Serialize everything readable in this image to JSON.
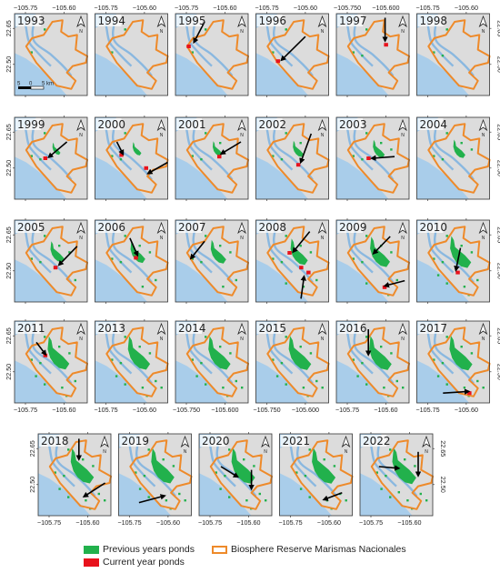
{
  "colors": {
    "sea": "#a9cdea",
    "land": "#dcdcdc",
    "lagoon_line": "#8ab8e0",
    "reserve": "#ee8a2a",
    "previous": "#22b14c",
    "current": "#e8121c",
    "frame": "#333333"
  },
  "maps": [
    {
      "year": "1993",
      "cluster": 0.0,
      "current": [],
      "arrows": []
    },
    {
      "year": "1994",
      "cluster": 0.0,
      "current": [],
      "arrows": []
    },
    {
      "year": "1995",
      "cluster": 0.02,
      "current": [
        [
          0.18,
          0.4
        ]
      ],
      "arrows": [
        [
          0.4,
          0.1,
          0.26,
          0.34
        ]
      ]
    },
    {
      "year": "1996",
      "cluster": 0.04,
      "current": [
        [
          0.3,
          0.58
        ]
      ],
      "arrows": [
        [
          0.68,
          0.28,
          0.36,
          0.56
        ]
      ]
    },
    {
      "year": "1997",
      "cluster": 0.05,
      "current": [
        [
          0.68,
          0.38
        ]
      ],
      "arrows": [
        [
          0.67,
          0.05,
          0.67,
          0.32
        ]
      ]
    },
    {
      "year": "1998",
      "cluster": 0.06,
      "current": [],
      "arrows": []
    },
    {
      "year": "1999",
      "cluster": 0.1,
      "current": [
        [
          0.42,
          0.5
        ]
      ],
      "arrows": [
        [
          0.72,
          0.3,
          0.48,
          0.48
        ]
      ]
    },
    {
      "year": "2000",
      "cluster": 0.14,
      "current": [
        [
          0.36,
          0.46
        ],
        [
          0.7,
          0.62
        ]
      ],
      "arrows": [
        [
          0.3,
          0.3,
          0.38,
          0.44
        ],
        [
          1.0,
          0.55,
          0.74,
          0.68
        ]
      ]
    },
    {
      "year": "2001",
      "cluster": 0.2,
      "current": [
        [
          0.6,
          0.48
        ]
      ],
      "arrows": [
        [
          0.9,
          0.3,
          0.64,
          0.44
        ]
      ]
    },
    {
      "year": "2002",
      "cluster": 0.24,
      "current": [
        [
          0.58,
          0.58
        ]
      ],
      "arrows": [
        [
          0.76,
          0.2,
          0.62,
          0.54
        ]
      ]
    },
    {
      "year": "2003",
      "cluster": 0.3,
      "current": [
        [
          0.44,
          0.5
        ]
      ],
      "arrows": [
        [
          0.8,
          0.48,
          0.5,
          0.5
        ]
      ]
    },
    {
      "year": "2004",
      "cluster": 0.32,
      "current": [],
      "arrows": []
    },
    {
      "year": "2005",
      "cluster": 0.4,
      "current": [
        [
          0.56,
          0.58
        ]
      ],
      "arrows": [
        [
          0.86,
          0.32,
          0.62,
          0.54
        ]
      ]
    },
    {
      "year": "2006",
      "cluster": 0.46,
      "current": [
        [
          0.56,
          0.46
        ]
      ],
      "arrows": [
        [
          0.48,
          0.22,
          0.58,
          0.42
        ]
      ]
    },
    {
      "year": "2007",
      "cluster": 0.5,
      "current": [],
      "arrows": [
        [
          0.4,
          0.26,
          0.22,
          0.46
        ]
      ]
    },
    {
      "year": "2008",
      "cluster": 0.6,
      "current": [
        [
          0.46,
          0.4
        ],
        [
          0.62,
          0.58
        ],
        [
          0.72,
          0.64
        ]
      ],
      "arrows": [
        [
          0.74,
          0.14,
          0.52,
          0.38
        ],
        [
          0.62,
          0.96,
          0.66,
          0.7
        ]
      ]
    },
    {
      "year": "2009",
      "cluster": 0.74,
      "current": [
        [
          0.66,
          0.82
        ]
      ],
      "arrows": [
        [
          0.74,
          0.2,
          0.52,
          0.4
        ],
        [
          0.94,
          0.74,
          0.68,
          0.8
        ]
      ]
    },
    {
      "year": "2010",
      "cluster": 0.8,
      "current": [
        [
          0.56,
          0.64
        ]
      ],
      "arrows": [
        [
          0.6,
          0.34,
          0.54,
          0.6
        ]
      ]
    },
    {
      "year": "2011",
      "cluster": 0.84,
      "current": [
        [
          0.42,
          0.42
        ]
      ],
      "arrows": [
        [
          0.3,
          0.26,
          0.42,
          0.4
        ]
      ]
    },
    {
      "year": "2013",
      "cluster": 0.86,
      "current": [],
      "arrows": []
    },
    {
      "year": "2014",
      "cluster": 0.86,
      "current": [],
      "arrows": []
    },
    {
      "year": "2015",
      "cluster": 0.88,
      "current": [],
      "arrows": []
    },
    {
      "year": "2016",
      "cluster": 0.88,
      "current": [],
      "arrows": [
        [
          0.44,
          0.1,
          0.44,
          0.4
        ]
      ]
    },
    {
      "year": "2017",
      "cluster": 0.9,
      "current": [
        [
          0.72,
          0.88
        ]
      ],
      "arrows": [
        [
          0.36,
          0.88,
          0.7,
          0.86
        ]
      ]
    },
    {
      "year": "2018",
      "cluster": 0.92,
      "current": [],
      "arrows": [
        [
          0.56,
          0.06,
          0.56,
          0.3
        ],
        [
          0.92,
          0.6,
          0.64,
          0.76
        ]
      ]
    },
    {
      "year": "2019",
      "cluster": 0.92,
      "current": [],
      "arrows": [
        [
          0.28,
          0.84,
          0.62,
          0.76
        ]
      ]
    },
    {
      "year": "2020",
      "cluster": 0.94,
      "current": [],
      "arrows": [
        [
          0.3,
          0.4,
          0.52,
          0.52
        ],
        [
          0.72,
          0.44,
          0.72,
          0.66
        ]
      ]
    },
    {
      "year": "2021",
      "cluster": 0.94,
      "current": [],
      "arrows": [
        [
          0.86,
          0.72,
          0.62,
          0.8
        ]
      ]
    },
    {
      "year": "2022",
      "cluster": 0.96,
      "current": [],
      "arrows": [
        [
          0.26,
          0.4,
          0.52,
          0.42
        ],
        [
          0.8,
          0.22,
          0.8,
          0.5
        ]
      ]
    }
  ],
  "axes": {
    "x_ticks": [
      "−105.75",
      "−105.60"
    ],
    "x_ticks_alt": [
      "−105.750",
      "−105.600"
    ],
    "y_ticks": [
      "22.65",
      "22.50"
    ]
  },
  "scale_bar": {
    "labels": [
      "5",
      "0",
      "5 km"
    ]
  },
  "north_arrow": {
    "label": "N"
  },
  "legend": {
    "previous": "Previous years ponds",
    "current": "Current year ponds",
    "reserve": "Biosphere Reserve Marismas Nacionales"
  }
}
